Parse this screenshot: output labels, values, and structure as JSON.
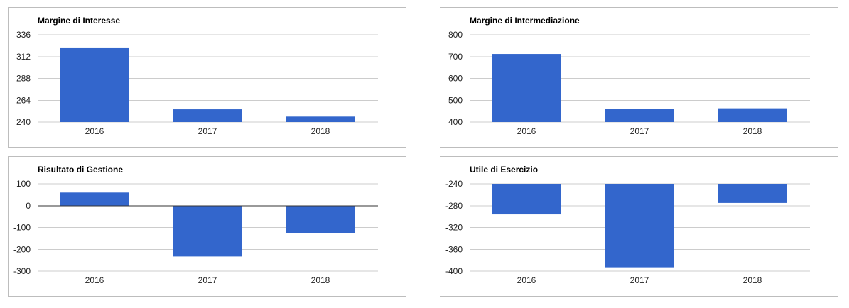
{
  "colors": {
    "bar": "#3366cc",
    "grid": "#cccccc",
    "baseline": "#333333"
  },
  "chart_data": [
    {
      "type": "bar",
      "title": "Margine di Interesse",
      "categories": [
        "2016",
        "2017",
        "2018"
      ],
      "values": [
        322,
        254,
        246
      ],
      "ylim": [
        240,
        336
      ],
      "yticks": [
        "336",
        "312",
        "288",
        "264",
        "240"
      ],
      "grid": true,
      "legend": "none"
    },
    {
      "type": "bar",
      "title": "Margine di Intermediazione",
      "categories": [
        "2016",
        "2017",
        "2018"
      ],
      "values": [
        712,
        460,
        463
      ],
      "ylim": [
        400,
        800
      ],
      "yticks": [
        "800",
        "700",
        "600",
        "500",
        "400"
      ],
      "grid": true,
      "legend": "none"
    },
    {
      "type": "bar",
      "title": "Risultato di Gestione",
      "categories": [
        "2016",
        "2017",
        "2018"
      ],
      "values": [
        60,
        -233,
        -125
      ],
      "ylim": [
        -300,
        100
      ],
      "yticks": [
        "100",
        "0",
        "-100",
        "-200",
        "-300"
      ],
      "grid": true,
      "legend": "none"
    },
    {
      "type": "bar",
      "title": "Utile di Esercizio",
      "categories": [
        "2016",
        "2017",
        "2018"
      ],
      "values": [
        -296,
        -393,
        -275
      ],
      "ylim": [
        -400,
        -240
      ],
      "yticks": [
        "-240",
        "-280",
        "-320",
        "-360",
        "-400"
      ],
      "grid": true,
      "legend": "none"
    }
  ]
}
